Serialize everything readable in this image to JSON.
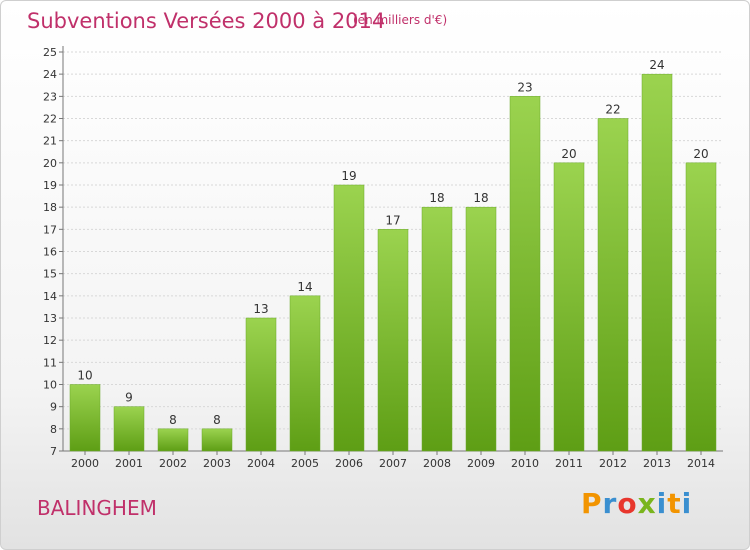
{
  "header": {
    "title": "Subventions Versées 2000 à 2014",
    "subtitle": "(en milliers d'€)"
  },
  "footer": {
    "commune": "BALINGHEM",
    "logo": "Proxiti"
  },
  "colors": {
    "title": "#c0306a",
    "bar_top": "#9bd34f",
    "bar_bottom": "#5e9e15",
    "grid": "#d8d8d8",
    "logo_letters": [
      "#f29400",
      "#3a8fd0",
      "#e8362d",
      "#7ab51d",
      "#3a8fd0",
      "#f29400",
      "#3a8fd0"
    ]
  },
  "chart_data": {
    "type": "bar",
    "title": "Subventions Versées 2000 à 2014",
    "subtitle": "(en milliers d'€)",
    "categories": [
      "2000",
      "2001",
      "2002",
      "2003",
      "2004",
      "2005",
      "2006",
      "2007",
      "2008",
      "2009",
      "2010",
      "2011",
      "2012",
      "2013",
      "2014"
    ],
    "values": [
      10,
      9,
      8,
      8,
      13,
      14,
      19,
      17,
      18,
      18,
      23,
      20,
      22,
      24,
      20
    ],
    "ylim": [
      7,
      25
    ],
    "yticks": [
      7,
      8,
      9,
      10,
      11,
      12,
      13,
      14,
      15,
      16,
      17,
      18,
      19,
      20,
      21,
      22,
      23,
      24,
      25
    ],
    "grid": true,
    "xlabel": "",
    "ylabel": ""
  }
}
